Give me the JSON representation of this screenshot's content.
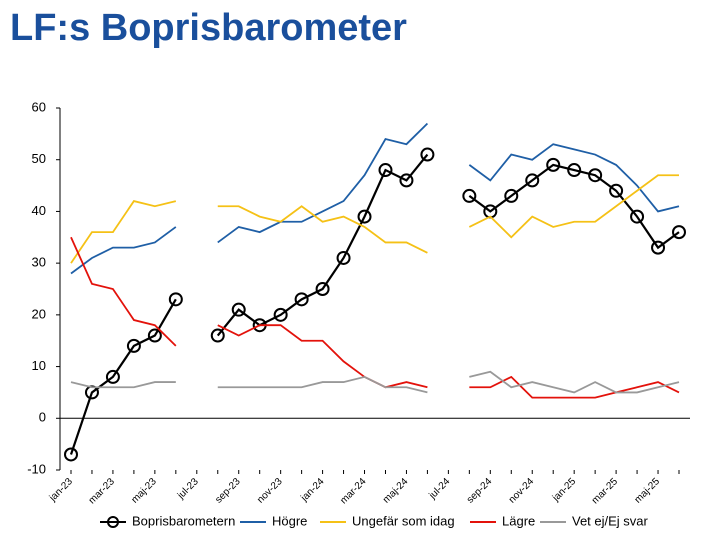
{
  "chart_data": {
    "type": "line",
    "title": "LF:s Boprisbarometer",
    "categories": [
      "jan-23",
      null,
      "mar-23",
      null,
      "maj-23",
      null,
      "jul-23",
      null,
      "sep-23",
      null,
      "nov-23",
      null,
      "jan-24",
      null,
      "mar-24",
      null,
      "maj-24",
      null,
      "jul-24",
      null,
      "sep-24",
      null,
      "nov-24",
      null,
      "jan-25",
      null,
      "mar-25",
      null,
      "maj-25",
      null
    ],
    "series": [
      {
        "name": "Boprisbarometern",
        "color": "#000000",
        "marker": "circle",
        "values": [
          -7,
          5,
          8,
          14,
          16,
          23,
          null,
          16,
          21,
          18,
          20,
          23,
          25,
          31,
          39,
          48,
          46,
          51,
          null,
          43,
          40,
          43,
          46,
          49,
          48,
          47,
          44,
          39,
          33,
          36
        ]
      },
      {
        "name": "Högre",
        "color": "#1f5fa6",
        "values": [
          28,
          31,
          33,
          33,
          34,
          37,
          null,
          34,
          37,
          36,
          38,
          38,
          40,
          42,
          47,
          54,
          53,
          57,
          null,
          49,
          46,
          51,
          50,
          53,
          52,
          51,
          49,
          45,
          40,
          41
        ]
      },
      {
        "name": "Ungefär som idag",
        "color": "#f5c116",
        "values": [
          30,
          36,
          36,
          42,
          41,
          42,
          null,
          41,
          41,
          39,
          38,
          41,
          38,
          39,
          37,
          34,
          34,
          32,
          null,
          37,
          39,
          35,
          39,
          37,
          38,
          38,
          41,
          44,
          47,
          47
        ]
      },
      {
        "name": "Lägre",
        "color": "#e3120b",
        "values": [
          35,
          26,
          25,
          19,
          18,
          14,
          null,
          18,
          16,
          18,
          18,
          15,
          15,
          11,
          8,
          6,
          7,
          6,
          null,
          6,
          6,
          8,
          4,
          4,
          4,
          4,
          5,
          6,
          7,
          5
        ]
      },
      {
        "name": "Vet ej/Ej svar",
        "color": "#999999",
        "values": [
          7,
          6,
          6,
          6,
          7,
          7,
          null,
          6,
          6,
          6,
          6,
          6,
          7,
          7,
          8,
          6,
          6,
          5,
          null,
          8,
          9,
          6,
          7,
          6,
          5,
          7,
          5,
          5,
          6,
          7
        ]
      }
    ],
    "ylim": [
      -10,
      60
    ],
    "yticks": [
      -10,
      0,
      10,
      20,
      30,
      40,
      50,
      60
    ],
    "grid": false,
    "legend": "bottom"
  }
}
